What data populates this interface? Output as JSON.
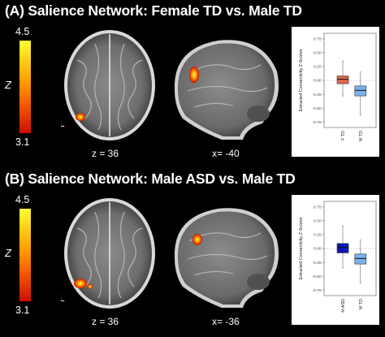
{
  "panels": [
    {
      "title": "(A) Salience Network: Female TD vs. Male TD",
      "colorbar": {
        "max": "4.5",
        "min": "3.1",
        "label": "Z",
        "colors": [
          "#ffff33",
          "#ff9a00",
          "#cc0f00"
        ]
      },
      "axial_label": "z = 36",
      "sagittal_label": "x= -40",
      "hemisphere_label": "L",
      "chart_data": {
        "type": "box",
        "ylabel": "Extracted Connectivity Z-Scores",
        "ylim": [
          -0.85,
          0.85
        ],
        "yticks": [
          "0.75",
          "0.50",
          "0.25",
          "0.00",
          "-0.25",
          "-0.50",
          "-0.75"
        ],
        "reference_line": 0,
        "categories": [
          "F TD",
          "M TD"
        ],
        "colors": [
          "#e0674f",
          "#7ab3ef"
        ],
        "boxes": [
          {
            "name": "F TD",
            "whisker_low": -0.28,
            "q1": -0.06,
            "median": 0.02,
            "q3": 0.08,
            "whisker_high": 0.35
          },
          {
            "name": "M TD",
            "whisker_low": -0.62,
            "q1": -0.28,
            "median": -0.18,
            "q3": -0.1,
            "whisker_high": 0.15
          }
        ]
      }
    },
    {
      "title": "(B) Salience Network: Male ASD vs. Male TD",
      "colorbar": {
        "max": "4.5",
        "min": "3.1",
        "label": "Z",
        "colors": [
          "#ffff33",
          "#ff9a00",
          "#cc0f00"
        ]
      },
      "axial_label": "z = 36",
      "sagittal_label": "x= -36",
      "hemisphere_label": "L",
      "chart_data": {
        "type": "box",
        "ylabel": "Extracted Connectivity Z-Scores",
        "ylim": [
          -0.85,
          0.85
        ],
        "yticks": [
          "0.75",
          "0.50",
          "0.25",
          "0.00",
          "-0.25",
          "-0.50",
          "-0.75"
        ],
        "reference_line": 0,
        "categories": [
          "M ASD",
          "M TD"
        ],
        "colors": [
          "#0b18b8",
          "#7ab3ef"
        ],
        "boxes": [
          {
            "name": "M ASD",
            "whisker_low": -0.35,
            "q1": -0.08,
            "median": 0.02,
            "q3": 0.09,
            "whisker_high": 0.4
          },
          {
            "name": "M TD",
            "whisker_low": -0.62,
            "q1": -0.28,
            "median": -0.18,
            "q3": -0.1,
            "whisker_high": 0.15
          }
        ]
      }
    }
  ]
}
